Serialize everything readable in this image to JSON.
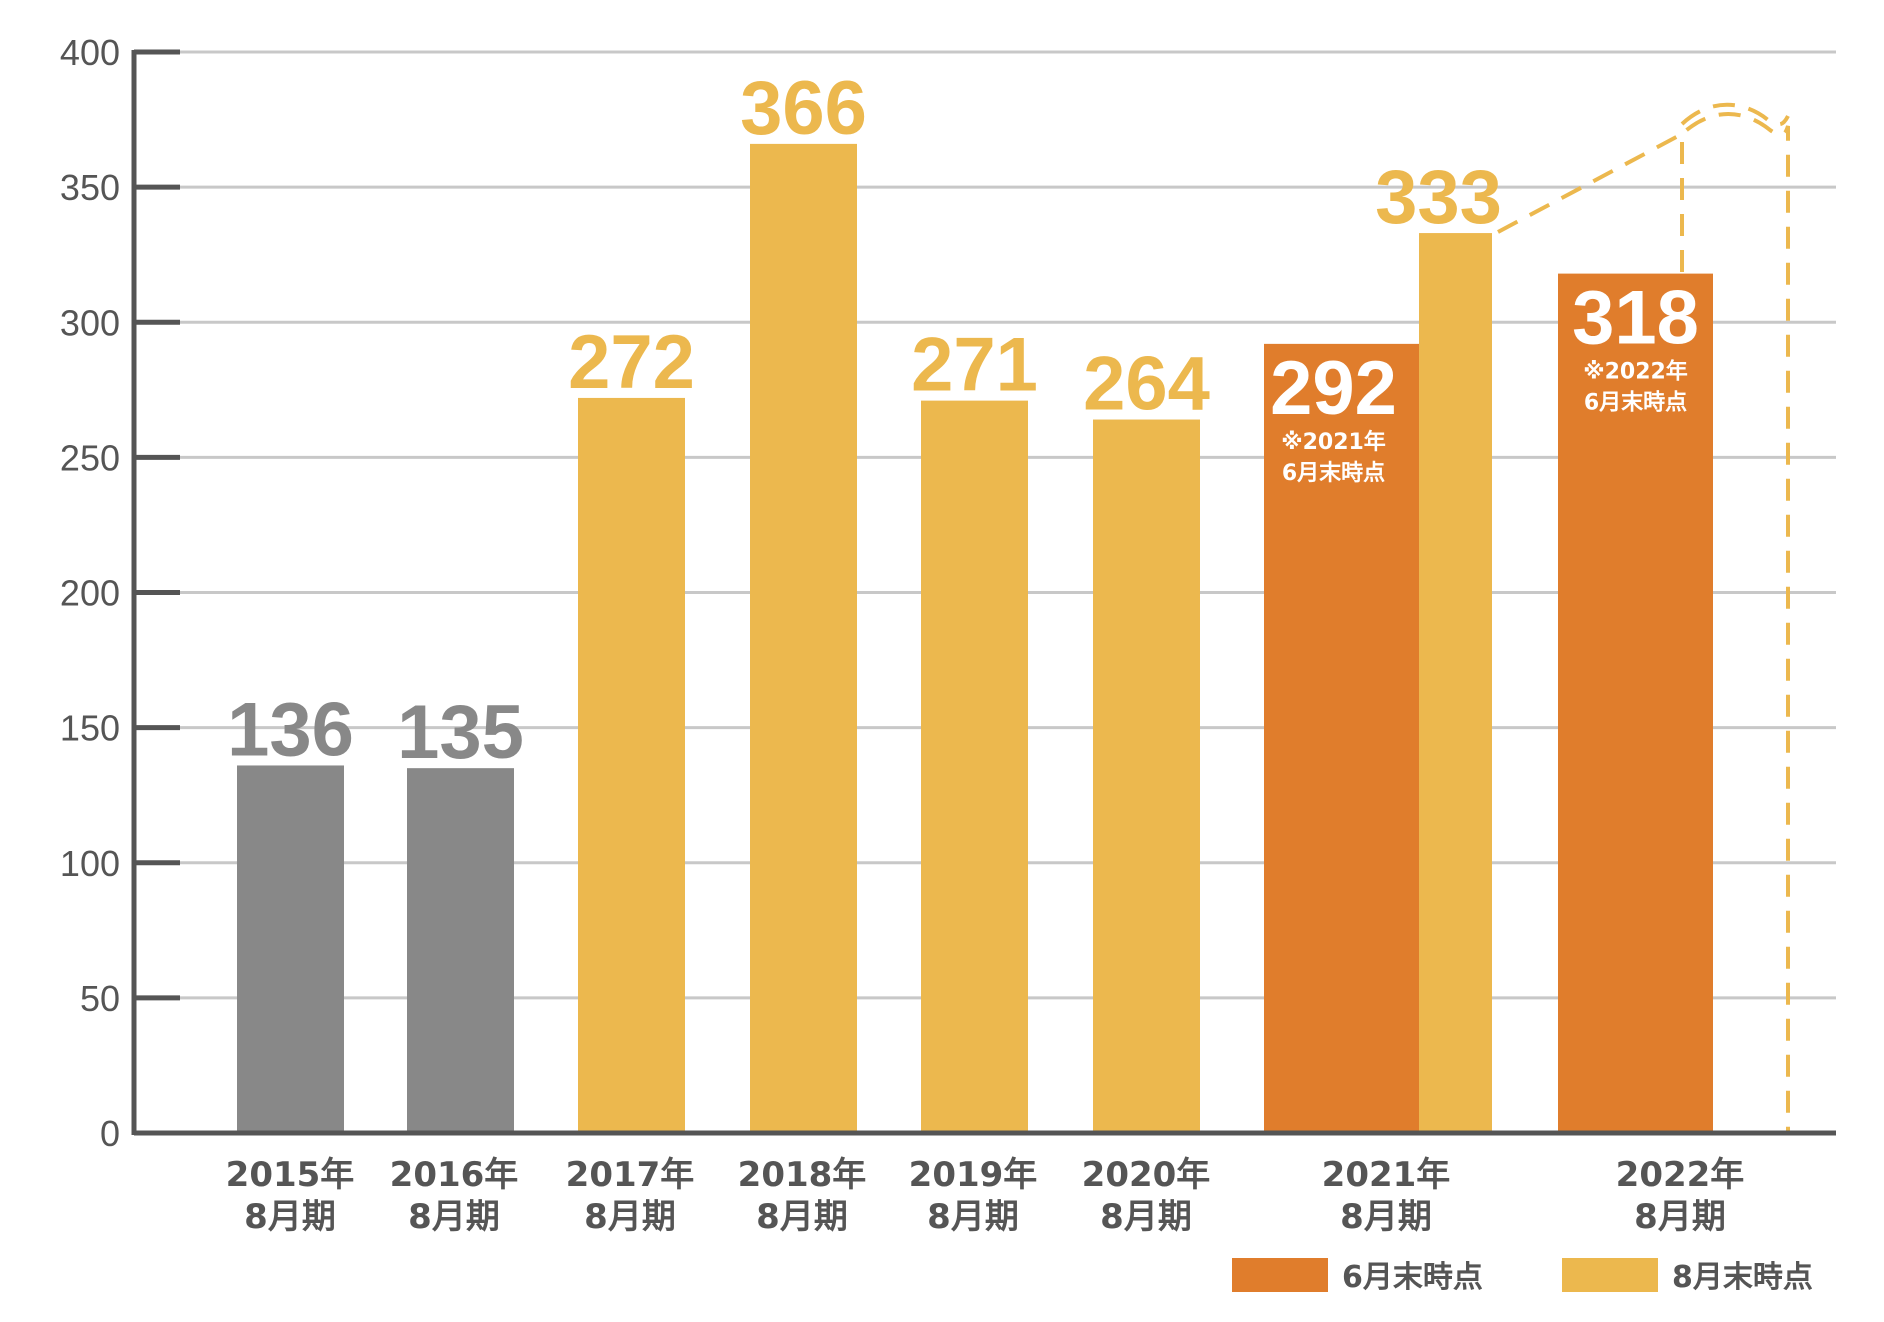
{
  "chart_data": {
    "type": "bar",
    "ylim": [
      0,
      400
    ],
    "yticks": [
      0,
      50,
      100,
      150,
      200,
      250,
      300,
      350,
      400
    ],
    "grid": true,
    "legend_placement": "bottom-right",
    "categories": [
      "2015年\n8月期",
      "2016年\n8月期",
      "2017年\n8月期",
      "2018年\n8月期",
      "2019年\n8月期",
      "2020年\n8月期",
      "2021年\n8月期",
      "2022年\n8月期"
    ],
    "series": [
      {
        "name": "8月末時点",
        "color": "#ECB84E",
        "values": [
          136,
          135,
          272,
          366,
          271,
          264,
          333,
          null
        ]
      },
      {
        "name": "6月末時点",
        "color": "#E07D2C",
        "values": [
          null,
          null,
          null,
          null,
          null,
          null,
          292,
          318
        ],
        "notes": [
          null,
          null,
          null,
          null,
          null,
          null,
          "※2021年\n6月末時点",
          "※2022年\n6月末時点"
        ]
      }
    ],
    "early_bar_color": "#888888",
    "legend": [
      {
        "label": "6月末時点",
        "color": "#E07D2C"
      },
      {
        "label": "8月末時点",
        "color": "#ECB84E"
      }
    ]
  }
}
